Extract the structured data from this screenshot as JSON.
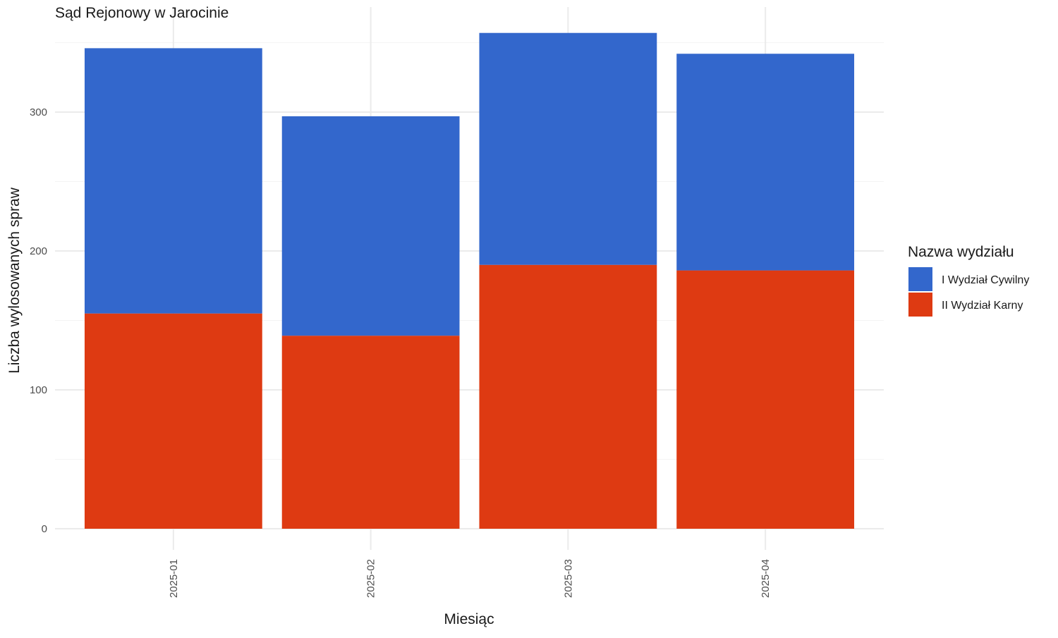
{
  "chart_data": {
    "type": "bar",
    "stacked": true,
    "title": "Sąd Rejonowy w Jarocinie",
    "xlabel": "Miesiąc",
    "ylabel": "Liczba wylosowanych spraw",
    "categories": [
      "2025-01",
      "2025-02",
      "2025-03",
      "2025-04"
    ],
    "series": [
      {
        "name": "II Wydział Karny",
        "color": "#de3a12",
        "values": [
          155,
          139,
          190,
          186
        ]
      },
      {
        "name": "I Wydział Cywilny",
        "color": "#3367cc",
        "values": [
          191,
          158,
          167,
          156
        ]
      }
    ],
    "ylim": [
      0,
      375
    ],
    "yticks": [
      0,
      100,
      200,
      300
    ],
    "grid": true,
    "legend": {
      "title": "Nazwa wydziału",
      "position": "right",
      "order": [
        "I Wydział Cywilny",
        "II Wydział Karny"
      ]
    }
  }
}
